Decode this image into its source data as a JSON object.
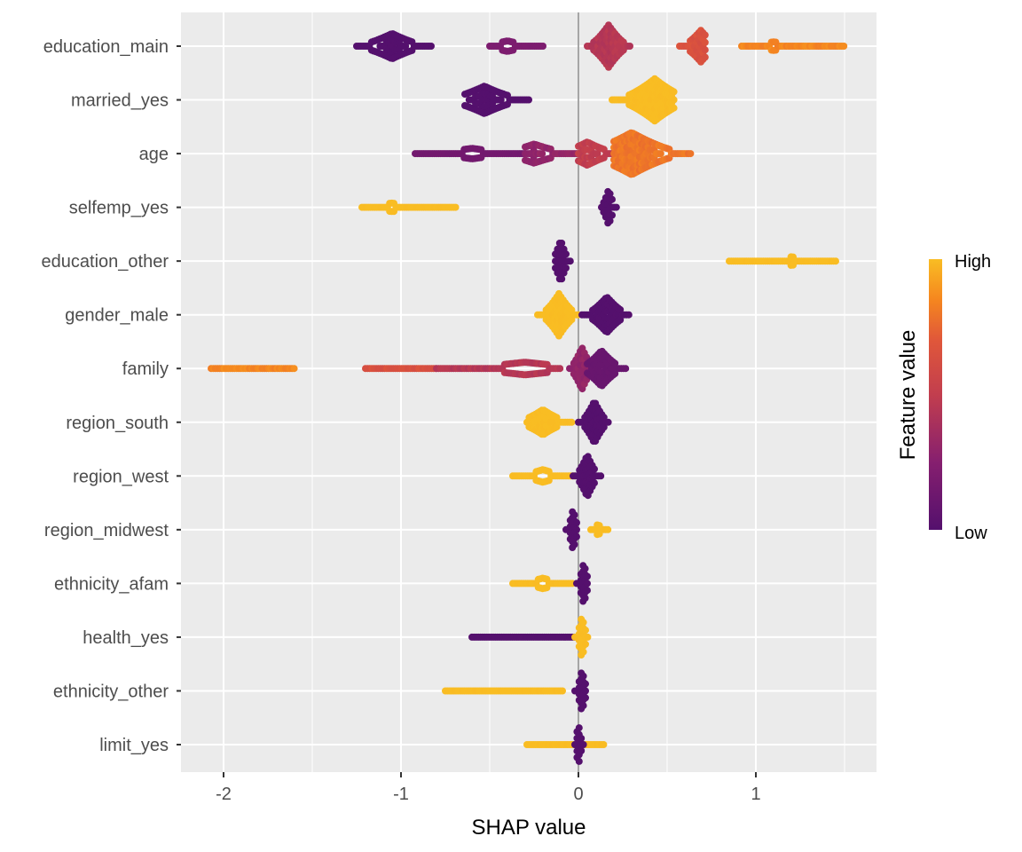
{
  "chart_data": {
    "type": "scatter",
    "subtype": "shap-beeswarm",
    "title": "",
    "xlabel": "SHAP value",
    "ylabel": "",
    "xlim": [
      -2.24,
      1.68
    ],
    "xticks": [
      -2,
      -1,
      0,
      1
    ],
    "xtick_labels": [
      "-2",
      "-1",
      "0",
      "1"
    ],
    "grid": true,
    "zero_line": true,
    "legend": {
      "title": "Feature value",
      "high_label": "High",
      "low_label": "Low",
      "placement": "right",
      "colors": [
        "#f9bd23",
        "#f5861f",
        "#e0573a",
        "#b83456",
        "#861f6f",
        "#54106d"
      ]
    },
    "features": [
      {
        "name": "education_main",
        "groups": [
          {
            "range": [
              -1.25,
              -0.82
            ],
            "center": -1.05,
            "spread": 0.6,
            "value": 0.0
          },
          {
            "range": [
              -0.5,
              -0.2
            ],
            "center": -0.4,
            "spread": 0.25,
            "value": 0.2
          },
          {
            "range": [
              0.05,
              0.3
            ],
            "center": 0.17,
            "spread": 1.0,
            "value": 0.45
          },
          {
            "range": [
              0.57,
              0.72
            ],
            "center": 0.69,
            "spread": 0.75,
            "value": 0.65
          },
          {
            "range": [
              0.92,
              1.5
            ],
            "center": 1.1,
            "spread": 0.2,
            "value": 0.85
          }
        ]
      },
      {
        "name": "married_yes",
        "groups": [
          {
            "range": [
              -0.64,
              -0.27
            ],
            "center": -0.53,
            "spread": 0.65,
            "value": 0.0
          },
          {
            "range": [
              0.19,
              0.54
            ],
            "center": 0.43,
            "spread": 1.0,
            "value": 1.0
          }
        ]
      },
      {
        "name": "age",
        "groups": [
          {
            "range": [
              -0.92,
              -0.3
            ],
            "center": -0.6,
            "spread": 0.25,
            "value": 0.15
          },
          {
            "range": [
              -0.3,
              0.0
            ],
            "center": -0.25,
            "spread": 0.45,
            "value": 0.3
          },
          {
            "range": [
              0.0,
              0.25
            ],
            "center": 0.05,
            "spread": 0.55,
            "value": 0.5
          },
          {
            "range": [
              0.2,
              0.64
            ],
            "center": 0.3,
            "spread": 1.0,
            "value": 0.8
          }
        ]
      },
      {
        "name": "selfemp_yes",
        "groups": [
          {
            "range": [
              -1.22,
              -0.69
            ],
            "center": -1.05,
            "spread": 0.2,
            "value": 1.0
          },
          {
            "range": [
              0.13,
              0.22
            ],
            "center": 0.17,
            "spread": 0.85,
            "value": 0.0
          }
        ]
      },
      {
        "name": "education_other",
        "groups": [
          {
            "range": [
              -0.13,
              -0.04
            ],
            "center": -0.1,
            "spread": 1.0,
            "value": 0.0
          },
          {
            "range": [
              0.85,
              1.46
            ],
            "center": 1.2,
            "spread": 0.2,
            "value": 1.0
          }
        ]
      },
      {
        "name": "gender_male",
        "groups": [
          {
            "range": [
              -0.23,
              0.0
            ],
            "center": -0.11,
            "spread": 1.0,
            "value": 1.0
          },
          {
            "range": [
              0.02,
              0.29
            ],
            "center": 0.16,
            "spread": 0.85,
            "value": 0.0
          }
        ]
      },
      {
        "name": "family",
        "groups": [
          {
            "range": [
              -2.07,
              -1.6
            ],
            "center": -1.9,
            "spread": 0.15,
            "value": 0.85
          },
          {
            "range": [
              -1.2,
              -0.8
            ],
            "center": -1.0,
            "spread": 0.15,
            "value": 0.65
          },
          {
            "range": [
              -0.8,
              -0.1
            ],
            "center": -0.3,
            "spread": 0.3,
            "value": 0.45
          },
          {
            "range": [
              -0.05,
              0.1
            ],
            "center": 0.02,
            "spread": 1.0,
            "value": 0.3
          },
          {
            "range": [
              0.05,
              0.27
            ],
            "center": 0.13,
            "spread": 0.85,
            "value": 0.1
          }
        ]
      },
      {
        "name": "region_south",
        "groups": [
          {
            "range": [
              -0.29,
              -0.03
            ],
            "center": -0.2,
            "spread": 0.6,
            "value": 1.0
          },
          {
            "range": [
              0.0,
              0.17
            ],
            "center": 0.09,
            "spread": 1.0,
            "value": 0.0
          }
        ]
      },
      {
        "name": "region_west",
        "groups": [
          {
            "range": [
              -0.37,
              -0.02
            ],
            "center": -0.2,
            "spread": 0.3,
            "value": 1.0
          },
          {
            "range": [
              -0.03,
              0.13
            ],
            "center": 0.05,
            "spread": 1.0,
            "value": 0.0
          }
        ]
      },
      {
        "name": "region_midwest",
        "groups": [
          {
            "range": [
              -0.07,
              0.0
            ],
            "center": -0.03,
            "spread": 1.0,
            "value": 0.0
          },
          {
            "range": [
              0.07,
              0.17
            ],
            "center": 0.11,
            "spread": 0.25,
            "value": 1.0
          }
        ]
      },
      {
        "name": "ethnicity_afam",
        "groups": [
          {
            "range": [
              -0.37,
              -0.03
            ],
            "center": -0.2,
            "spread": 0.25,
            "value": 1.0
          },
          {
            "range": [
              -0.01,
              0.06
            ],
            "center": 0.03,
            "spread": 1.0,
            "value": 0.0
          }
        ]
      },
      {
        "name": "health_yes",
        "groups": [
          {
            "range": [
              -0.6,
              -0.02
            ],
            "center": -0.3,
            "spread": 0.15,
            "value": 0.0
          },
          {
            "range": [
              -0.02,
              0.06
            ],
            "center": 0.02,
            "spread": 1.0,
            "value": 1.0
          }
        ]
      },
      {
        "name": "ethnicity_other",
        "groups": [
          {
            "range": [
              -0.75,
              -0.09
            ],
            "center": -0.4,
            "spread": 0.15,
            "value": 1.0
          },
          {
            "range": [
              -0.02,
              0.05
            ],
            "center": 0.02,
            "spread": 1.0,
            "value": 0.0
          }
        ]
      },
      {
        "name": "limit_yes",
        "groups": [
          {
            "range": [
              -0.29,
              0.15
            ],
            "center": 0.0,
            "spread": 0.15,
            "value": 1.0
          },
          {
            "range": [
              -0.02,
              0.03
            ],
            "center": 0.0,
            "spread": 1.0,
            "value": 0.0
          }
        ]
      }
    ]
  }
}
